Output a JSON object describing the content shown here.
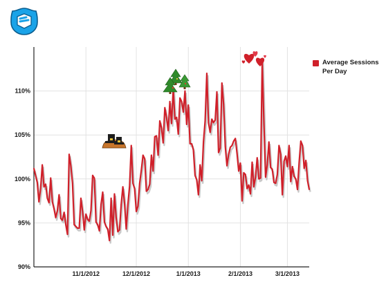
{
  "brand": {
    "logo_icon": "gamepad-badge-icon",
    "logo_color": "#1aa3e8"
  },
  "legend": {
    "label": "Average Sessions Per Day",
    "color": "#d0202a"
  },
  "chart_data": {
    "type": "line",
    "title": "",
    "xlabel": "",
    "ylabel": "",
    "x_ticks": [
      "11/1/2012",
      "12/1/2012",
      "1/1/2013",
      "2/1/2013",
      "3/1/2013"
    ],
    "y_ticks": [
      "90%",
      "95%",
      "100%",
      "105%",
      "110%"
    ],
    "ylim": [
      90,
      115
    ],
    "grid": true,
    "legend_position": "top-right",
    "series": [
      {
        "name": "Average Sessions Per Day",
        "color": "#d0202a",
        "values": [
          101.2,
          100.4,
          99.6,
          97.4,
          98.9,
          101.6,
          99.1,
          99.4,
          97.8,
          97.3,
          100.1,
          97.4,
          96.6,
          95.6,
          96.4,
          98.2,
          95.5,
          95.3,
          96.2,
          94.8,
          93.7,
          102.8,
          101.5,
          99.5,
          94.8,
          94.6,
          94.4,
          94.4,
          97.8,
          96.3,
          94.2,
          96.0,
          95.4,
          95.2,
          96.4,
          100.4,
          100.1,
          95.1,
          94.8,
          94.1,
          97.1,
          98.5,
          95.1,
          94.6,
          94.3,
          93.0,
          97.8,
          93.6,
          98.3,
          95.6,
          94.0,
          94.2,
          97.1,
          99.1,
          97.2,
          94.3,
          97.1,
          99.2,
          103.8,
          99.5,
          98.9,
          96.3,
          96.9,
          99.5,
          101.0,
          102.7,
          102.3,
          98.6,
          98.8,
          99.4,
          102.7,
          100.9,
          104.8,
          104.9,
          102.7,
          106.6,
          105.8,
          104.1,
          108.1,
          107.0,
          105.5,
          108.8,
          106.3,
          110.3,
          106.8,
          107.0,
          105.1,
          109.2,
          108.8,
          107.6,
          110.0,
          106.2,
          108.4,
          104.0,
          104.0,
          103.3,
          100.4,
          99.9,
          98.2,
          101.6,
          99.8,
          104.2,
          106.6,
          112.0,
          106.4,
          105.3,
          106.8,
          106.4,
          106.7,
          109.9,
          103.0,
          103.5,
          110.9,
          108.5,
          103.7,
          101.5,
          102.8,
          103.6,
          103.8,
          104.3,
          104.6,
          102.9,
          100.9,
          101.8,
          97.5,
          100.7,
          100.5,
          98.9,
          99.3,
          98.3,
          101.9,
          99.1,
          100.2,
          102.4,
          100.0,
          100.1,
          113.4,
          106.5,
          100.2,
          101.6,
          104.2,
          101.3,
          101.1,
          99.6,
          99.5,
          100.5,
          103.8,
          102.8,
          98.2,
          102.0,
          102.6,
          101.4,
          103.8,
          99.7,
          101.4,
          100.3,
          100.0,
          98.8,
          101.9,
          104.3,
          103.8,
          101.2,
          102.1,
          99.8,
          98.8
        ]
      }
    ],
    "annotations": [
      {
        "icon": "pilgrim-hat-turkey-icon",
        "near": "11/22/2012"
      },
      {
        "icon": "christmas-trees-icon",
        "near": "12/25/2012"
      },
      {
        "icon": "valentine-hearts-icon",
        "near": "2/14/2013"
      }
    ]
  }
}
